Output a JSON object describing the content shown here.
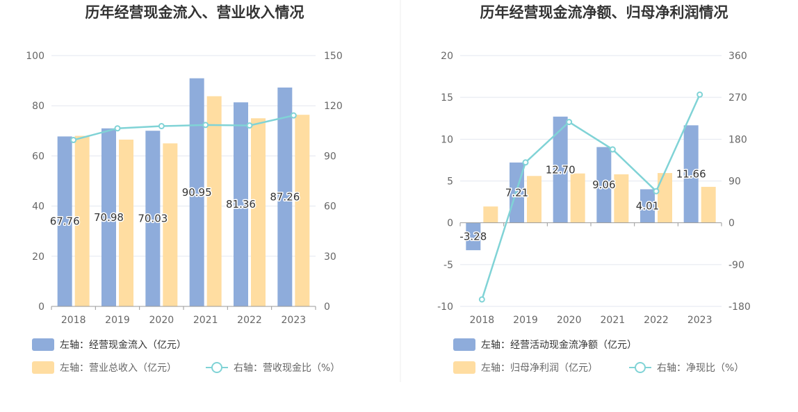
{
  "colors": {
    "bar_main": "#8eacdb",
    "bar_secondary": "#ffdda1",
    "line": "#80d3d6",
    "grid": "#e3e7ef",
    "axis": "#999999"
  },
  "chart_data": [
    {
      "type": "bar",
      "title": "历年经营现金流入、营业收入情况",
      "categories": [
        "2018",
        "2019",
        "2020",
        "2021",
        "2022",
        "2023"
      ],
      "left_axis": {
        "ylim": [
          0,
          100
        ],
        "ticks": [
          "0",
          "20",
          "40",
          "60",
          "80",
          "100"
        ]
      },
      "right_axis": {
        "ylim": [
          0,
          150
        ],
        "ticks": [
          "0",
          "30",
          "60",
          "90",
          "120",
          "150"
        ]
      },
      "series": [
        {
          "name": "左轴：经营现金流入（亿元）",
          "axis": "left",
          "kind": "bar",
          "color_key": "bar_main",
          "values": [
            67.76,
            70.98,
            70.03,
            90.95,
            81.36,
            87.26
          ],
          "labels": [
            "67.76",
            "70.98",
            "70.03",
            "90.95",
            "81.36",
            "87.26"
          ]
        },
        {
          "name": "左轴：营业总收入（亿元）",
          "axis": "left",
          "kind": "bar",
          "color_key": "bar_secondary",
          "values": [
            68.0,
            66.5,
            65.0,
            83.8,
            75.0,
            76.4
          ]
        },
        {
          "name": "右轴：营收现金比（%）",
          "axis": "right",
          "kind": "line",
          "color_key": "line",
          "values": [
            99.5,
            106.5,
            107.8,
            108.5,
            108.2,
            114.2
          ]
        }
      ],
      "legend": {
        "placement": "bottom-left"
      },
      "grid": true
    },
    {
      "type": "bar",
      "title": "历年经营现金流净额、归母净利润情况",
      "categories": [
        "2018",
        "2019",
        "2020",
        "2021",
        "2022",
        "2023"
      ],
      "left_axis": {
        "ylim": [
          -10,
          20
        ],
        "ticks": [
          "-10",
          "-5",
          "0",
          "5",
          "10",
          "15",
          "20"
        ]
      },
      "right_axis": {
        "ylim": [
          -180,
          360
        ],
        "ticks": [
          "-180",
          "-90",
          "0",
          "90",
          "180",
          "270",
          "360"
        ]
      },
      "series": [
        {
          "name": "左轴：经营活动现金流净额（亿元）",
          "axis": "left",
          "kind": "bar",
          "color_key": "bar_main",
          "values": [
            -3.28,
            7.21,
            12.7,
            9.06,
            4.01,
            11.66
          ],
          "labels": [
            "-3.28",
            "7.21",
            "12.70",
            "9.06",
            "4.01",
            "11.66"
          ]
        },
        {
          "name": "左轴：归母净利润（亿元）",
          "axis": "left",
          "kind": "bar",
          "color_key": "bar_secondary",
          "values": [
            1.95,
            5.6,
            5.9,
            5.8,
            5.95,
            4.3
          ]
        },
        {
          "name": "右轴：净现比（%）",
          "axis": "right",
          "kind": "line",
          "color_key": "line",
          "values": [
            -165,
            130,
            217,
            158,
            68,
            276
          ]
        }
      ],
      "legend": {
        "placement": "bottom-left"
      },
      "grid": true
    }
  ]
}
